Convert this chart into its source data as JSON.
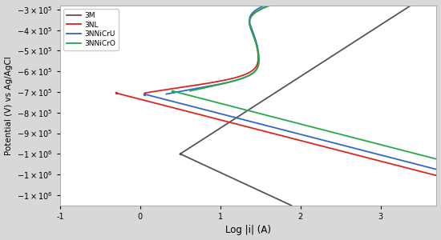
{
  "xlabel": "Log |i| (A)",
  "ylabel": "Potential (V) vs Ag/AgCl",
  "xlim": [
    -1,
    3.7
  ],
  "ylim": [
    -1250000.0,
    -280000.0
  ],
  "background": "#d8d8d8",
  "plot_bg": "#ffffff",
  "ytick_vals": [
    -300000.0,
    -400000.0,
    -500000.0,
    -600000.0,
    -700000.0,
    -800000.0,
    -900000.0,
    -1000000.0,
    -1100000.0,
    -1200000.0
  ],
  "ytick_labels": [
    "-3x10^5",
    "-4x10^5",
    "-5x10^5",
    "-6x10^5",
    "-7x10^5",
    "-8x10^5",
    "-9x10^5",
    "-1x10^6",
    "-1x10^6",
    "-1x10^6"
  ],
  "xtick_vals": [
    -1,
    0,
    1,
    2,
    3
  ],
  "xtick_labels": [
    "-1",
    "0",
    "1",
    "2",
    "3"
  ],
  "series": [
    {
      "label": "3M",
      "color": "#555555",
      "E_corr": -1000000.0,
      "log_i_corr": 0.5,
      "ba": 250000.0,
      "bc": 180000.0,
      "passive_log_i": 2.0,
      "transpassive_log_i": 2.8,
      "E_transpassive": -800000.0,
      "has_passive": false
    },
    {
      "label": "3NL",
      "color": "#dd2222",
      "E_corr": -705000.0,
      "log_i_corr": -0.3,
      "ba": 150000.0,
      "bc": 100000.0,
      "passive_log_i": 1.5,
      "transpassive_log_i": 2.0,
      "E_transpassive": -300000.0,
      "has_passive": true
    },
    {
      "label": "3NNiCrU",
      "color": "#3366cc",
      "E_corr": -710000.0,
      "log_i_corr": 0.05,
      "ba": 150000.0,
      "bc": 100000.0,
      "passive_log_i": 1.5,
      "transpassive_log_i": 1.85,
      "E_transpassive": -290000.0,
      "has_passive": true
    },
    {
      "label": "3NNiCrO",
      "color": "#22aa44",
      "E_corr": -695000.0,
      "log_i_corr": 0.4,
      "ba": 150000.0,
      "bc": 100000.0,
      "passive_log_i": 1.5,
      "transpassive_log_i": 2.3,
      "E_transpassive": -300000.0,
      "has_passive": true
    }
  ]
}
